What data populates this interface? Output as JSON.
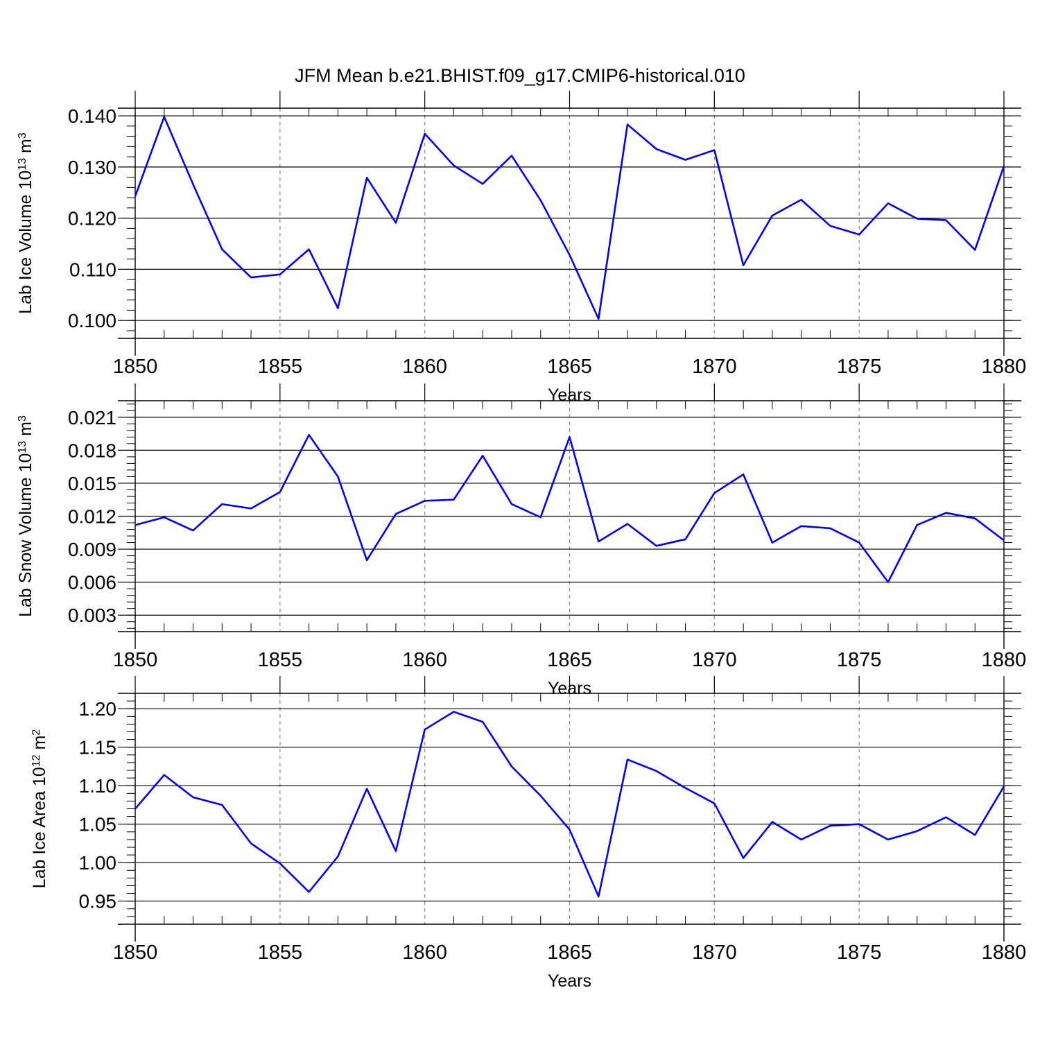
{
  "title": "JFM Mean b.e21.BHIST.f09_g17.CMIP6-historical.010",
  "colors": {
    "line": "#0000ff",
    "axis": "#000000",
    "grid": "#888888"
  },
  "chart_data": [
    {
      "type": "line",
      "ylabel_main": "Lab Ice Volume 10",
      "ylabel_exp": "13",
      "ylabel_unit": " m",
      "ylabel_unit_exp": "3",
      "xlabel": "Years",
      "xlim": [
        1850,
        1880
      ],
      "ylim": [
        0.0965,
        0.1415
      ],
      "yticks": [
        "0.100",
        "0.110",
        "0.120",
        "0.130",
        "0.140"
      ],
      "xticks": [
        "1850",
        "1855",
        "1860",
        "1865",
        "1870",
        "1875",
        "1880"
      ],
      "x": [
        1850,
        1851,
        1852,
        1853,
        1854,
        1855,
        1856,
        1857,
        1858,
        1859,
        1860,
        1861,
        1862,
        1863,
        1864,
        1865,
        1866,
        1867,
        1868,
        1869,
        1870,
        1871,
        1872,
        1873,
        1874,
        1875,
        1876,
        1877,
        1878,
        1879,
        1880
      ],
      "values": [
        0.1243,
        0.1398,
        0.1266,
        0.1139,
        0.1084,
        0.109,
        0.1139,
        0.1024,
        0.1279,
        0.1191,
        0.1365,
        0.1303,
        0.1267,
        0.1322,
        0.1235,
        0.1128,
        0.1003,
        0.1383,
        0.1335,
        0.1314,
        0.1333,
        0.1108,
        0.1205,
        0.1236,
        0.1185,
        0.1168,
        0.1229,
        0.1199,
        0.1196,
        0.1138,
        0.1302
      ]
    },
    {
      "type": "line",
      "ylabel_main": "Lab Snow Volume 10",
      "ylabel_exp": "13",
      "ylabel_unit": " m",
      "ylabel_unit_exp": "3",
      "xlabel": "Years",
      "xlim": [
        1850,
        1880
      ],
      "ylim": [
        0.0015,
        0.0225
      ],
      "yticks": [
        "0.003",
        "0.006",
        "0.009",
        "0.012",
        "0.015",
        "0.018",
        "0.021"
      ],
      "xticks": [
        "1850",
        "1855",
        "1860",
        "1865",
        "1870",
        "1875",
        "1880"
      ],
      "x": [
        1850,
        1851,
        1852,
        1853,
        1854,
        1855,
        1856,
        1857,
        1858,
        1859,
        1860,
        1861,
        1862,
        1863,
        1864,
        1865,
        1866,
        1867,
        1868,
        1869,
        1870,
        1871,
        1872,
        1873,
        1874,
        1875,
        1876,
        1877,
        1878,
        1879,
        1880
      ],
      "values": [
        0.0112,
        0.0119,
        0.0107,
        0.0131,
        0.0127,
        0.0142,
        0.0194,
        0.0156,
        0.008,
        0.0122,
        0.0134,
        0.0135,
        0.0175,
        0.0131,
        0.0119,
        0.0192,
        0.0097,
        0.0113,
        0.0093,
        0.0099,
        0.0141,
        0.0158,
        0.0096,
        0.0111,
        0.0109,
        0.0096,
        0.006,
        0.0112,
        0.0123,
        0.0118,
        0.0098
      ]
    },
    {
      "type": "line",
      "ylabel_main": "Lab Ice Area 10",
      "ylabel_exp": "12",
      "ylabel_unit": " m",
      "ylabel_unit_exp": "2",
      "xlabel": "Years",
      "xlim": [
        1850,
        1880
      ],
      "ylim": [
        0.92,
        1.22
      ],
      "yticks": [
        "0.95",
        "1.00",
        "1.05",
        "1.10",
        "1.15",
        "1.20"
      ],
      "xticks": [
        "1850",
        "1855",
        "1860",
        "1865",
        "1870",
        "1875",
        "1880"
      ],
      "x": [
        1850,
        1851,
        1852,
        1853,
        1854,
        1855,
        1856,
        1857,
        1858,
        1859,
        1860,
        1861,
        1862,
        1863,
        1864,
        1865,
        1866,
        1867,
        1868,
        1869,
        1870,
        1871,
        1872,
        1873,
        1874,
        1875,
        1876,
        1877,
        1878,
        1879,
        1880
      ],
      "values": [
        1.07,
        1.114,
        1.085,
        1.075,
        1.025,
        0.999,
        0.962,
        1.008,
        1.096,
        1.015,
        1.173,
        1.196,
        1.183,
        1.125,
        1.087,
        1.043,
        0.956,
        1.134,
        1.119,
        1.097,
        1.077,
        1.006,
        1.053,
        1.03,
        1.048,
        1.05,
        1.03,
        1.041,
        1.059,
        1.036,
        1.099
      ]
    }
  ]
}
